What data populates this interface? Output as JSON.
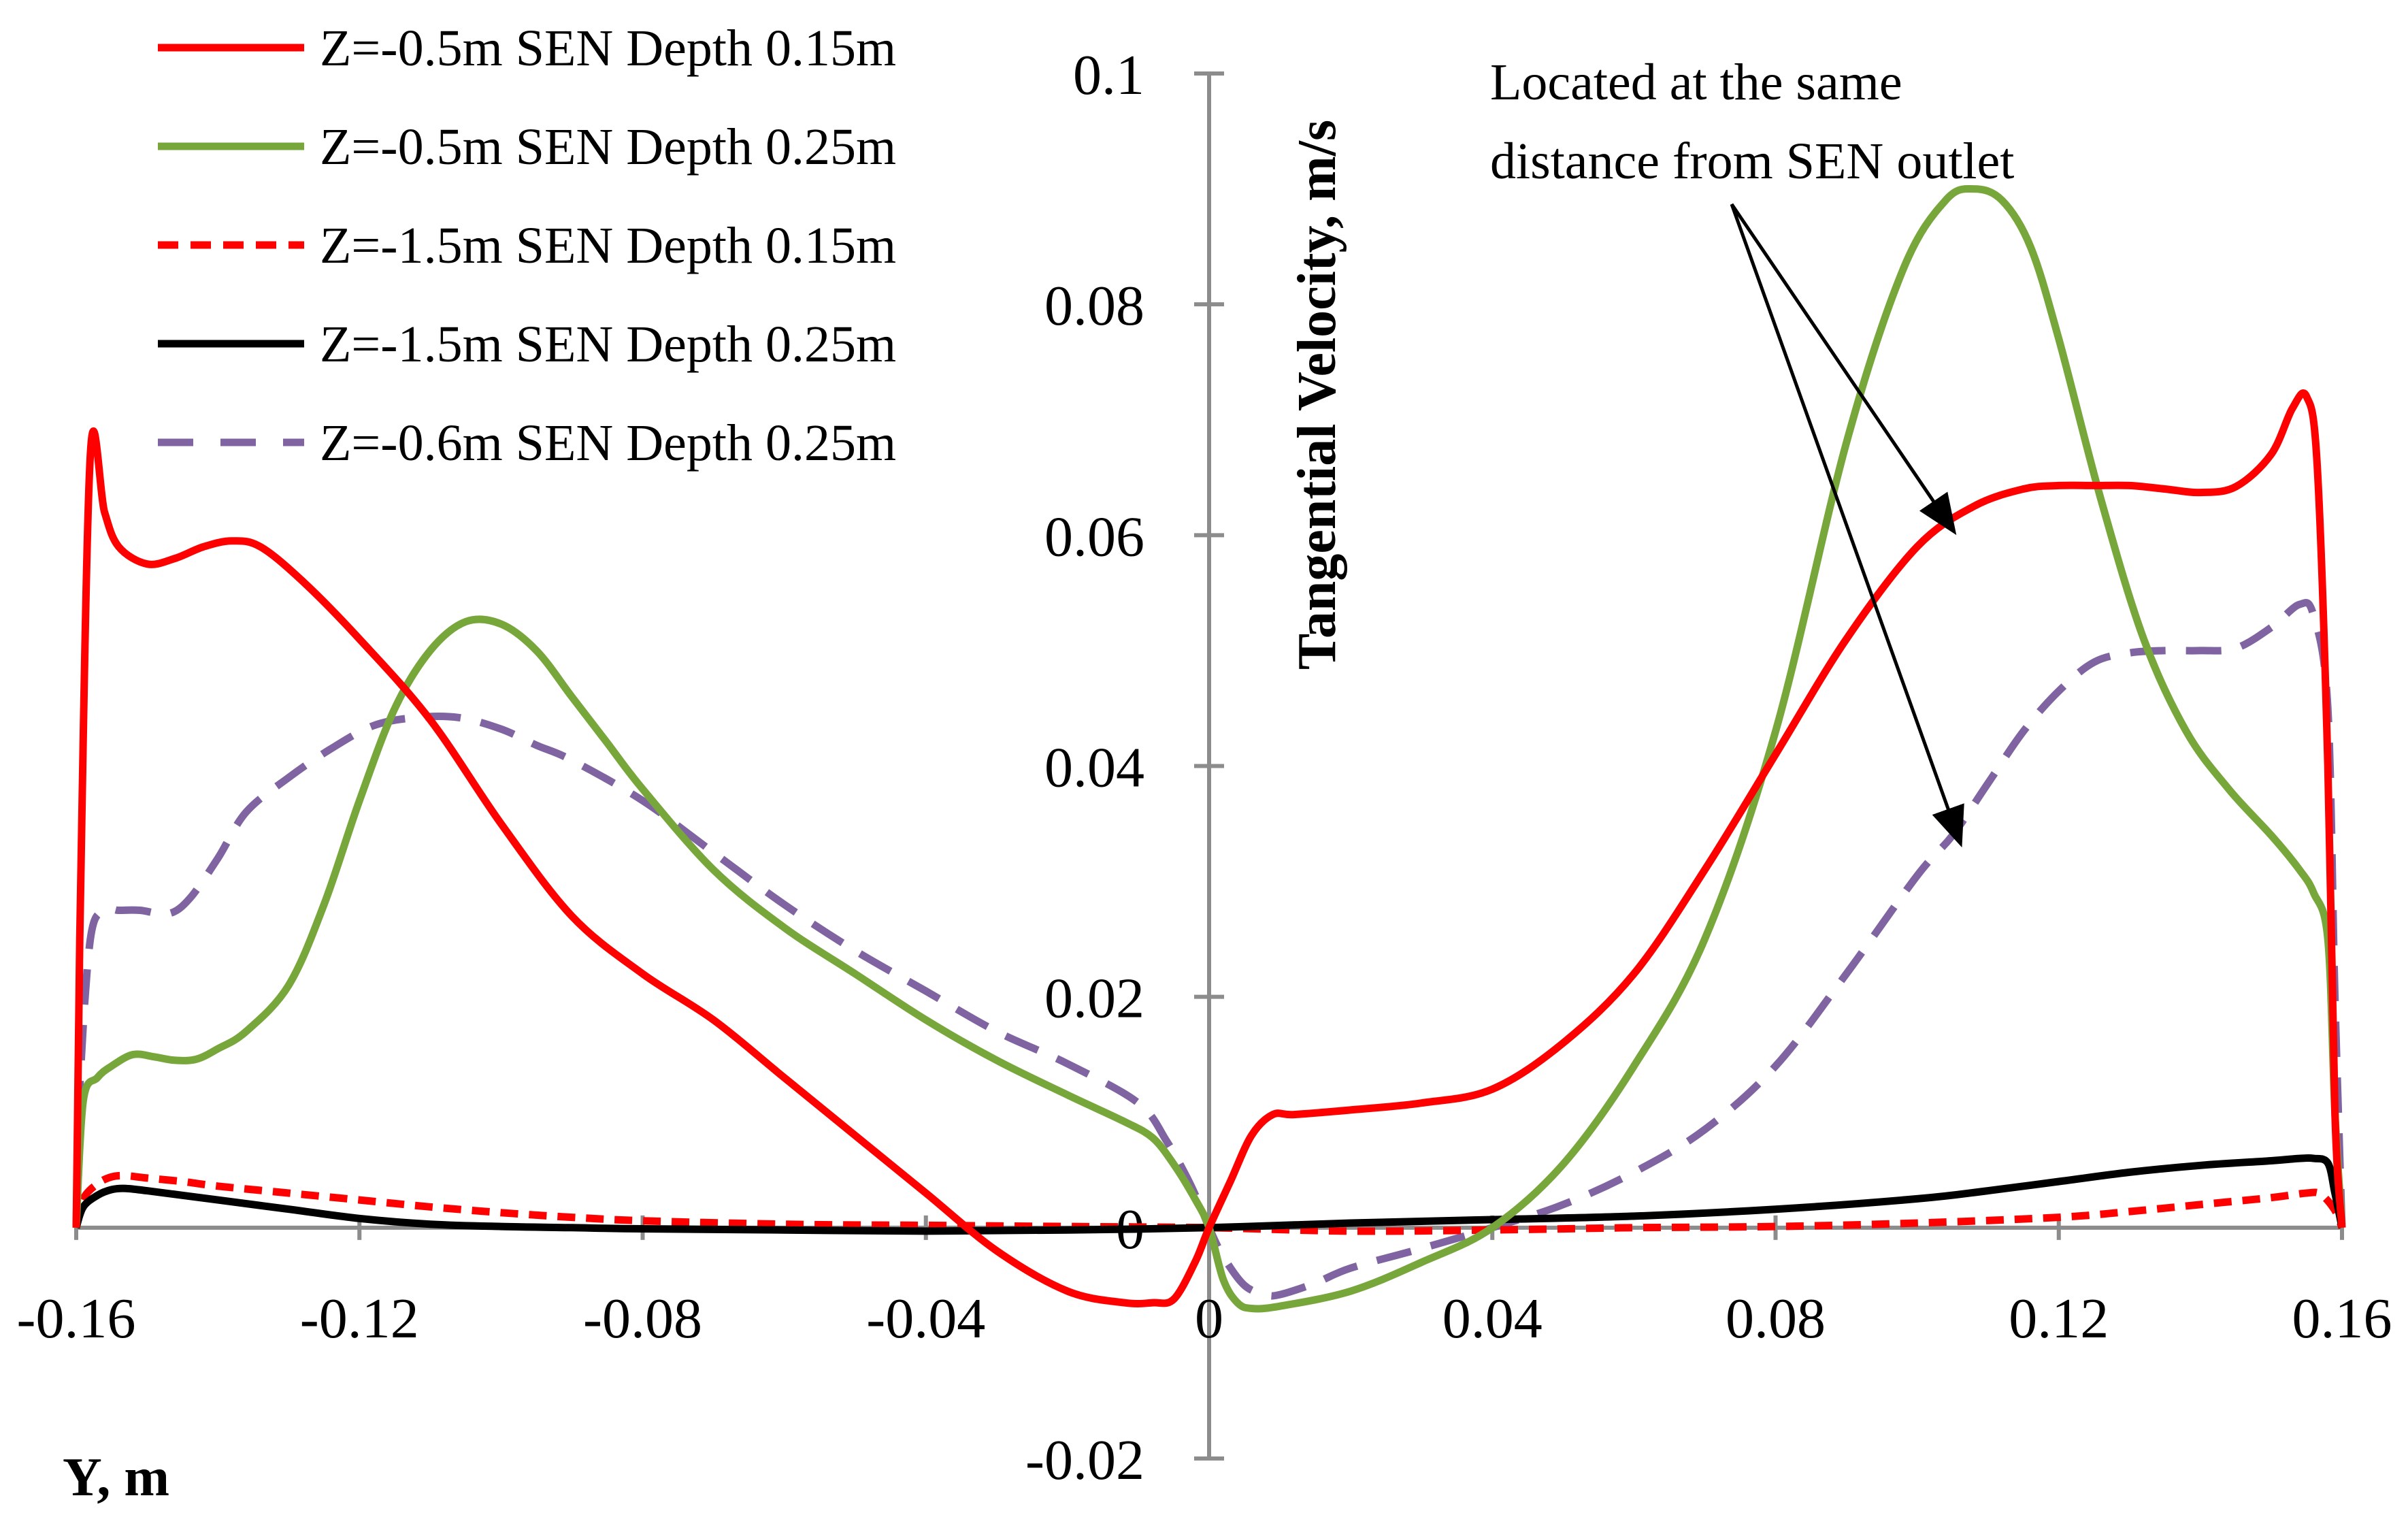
{
  "chart_data": {
    "type": "line",
    "title": "",
    "xlabel": "Y, m",
    "ylabel": "Tangential Velocity, m/s",
    "xlim": [
      -0.16,
      0.16
    ],
    "ylim": [
      -0.02,
      0.1
    ],
    "x_ticks": [
      -0.16,
      -0.12,
      -0.08,
      -0.04,
      0,
      0.04,
      0.08,
      0.12,
      0.16
    ],
    "x_tick_labels": [
      "-0.16",
      "-0.12",
      "-0.08",
      "-0.04",
      "0",
      "0.04",
      "0.08",
      "0.12",
      "0.16"
    ],
    "y_ticks": [
      -0.02,
      0,
      0.02,
      0.04,
      0.06,
      0.08,
      0.1
    ],
    "y_tick_labels": [
      "-0.02",
      "0",
      "0.02",
      "0.04",
      "0.06",
      "0.08",
      "0.1"
    ],
    "grid": false,
    "legend_position": "top-left",
    "series": [
      {
        "name": "Z=-0.5m SEN Depth 0.15m",
        "color": "#ff0000",
        "dash": "solid",
        "x": [
          -0.16,
          -0.1595,
          -0.158,
          -0.156,
          -0.154,
          -0.15,
          -0.146,
          -0.142,
          -0.138,
          -0.134,
          -0.128,
          -0.12,
          -0.11,
          -0.1,
          -0.09,
          -0.08,
          -0.07,
          -0.06,
          -0.05,
          -0.04,
          -0.03,
          -0.02,
          -0.012,
          -0.008,
          -0.005,
          -0.002,
          0,
          0.003,
          0.006,
          0.009,
          0.012,
          0.02,
          0.03,
          0.04,
          0.05,
          0.06,
          0.07,
          0.08,
          0.09,
          0.1,
          0.108,
          0.115,
          0.12,
          0.125,
          0.13,
          0.135,
          0.14,
          0.145,
          0.15,
          0.153,
          0.155,
          0.1565,
          0.158,
          0.159,
          0.16
        ],
        "y": [
          0.0,
          0.025,
          0.067,
          0.062,
          0.059,
          0.0575,
          0.058,
          0.059,
          0.0595,
          0.059,
          0.056,
          0.051,
          0.044,
          0.035,
          0.027,
          0.022,
          0.018,
          0.013,
          0.008,
          0.003,
          -0.002,
          -0.0055,
          -0.0065,
          -0.0065,
          -0.0062,
          -0.003,
          0.0,
          0.004,
          0.008,
          0.0098,
          0.0098,
          0.0102,
          0.0108,
          0.012,
          0.016,
          0.022,
          0.031,
          0.041,
          0.051,
          0.059,
          0.0625,
          0.064,
          0.0643,
          0.0643,
          0.0643,
          0.064,
          0.0637,
          0.0642,
          0.067,
          0.071,
          0.072,
          0.066,
          0.04,
          0.01,
          0.0
        ]
      },
      {
        "name": "Z=-0.5m SEN Depth 0.25m",
        "color": "#77a73b",
        "dash": "solid",
        "x": [
          -0.16,
          -0.159,
          -0.157,
          -0.155,
          -0.152,
          -0.149,
          -0.146,
          -0.143,
          -0.14,
          -0.136,
          -0.13,
          -0.125,
          -0.12,
          -0.115,
          -0.11,
          -0.105,
          -0.1,
          -0.095,
          -0.09,
          -0.085,
          -0.08,
          -0.07,
          -0.06,
          -0.05,
          -0.04,
          -0.03,
          -0.02,
          -0.012,
          -0.008,
          -0.005,
          -0.002,
          0,
          0.002,
          0.004,
          0.006,
          0.01,
          0.02,
          0.03,
          0.04,
          0.05,
          0.06,
          0.07,
          0.08,
          0.09,
          0.098,
          0.104,
          0.108,
          0.112,
          0.116,
          0.12,
          0.126,
          0.132,
          0.138,
          0.144,
          0.15,
          0.154,
          0.156,
          0.158,
          0.159,
          0.16
        ],
        "y": [
          0.0,
          0.011,
          0.013,
          0.014,
          0.015,
          0.0148,
          0.0145,
          0.0146,
          0.0155,
          0.017,
          0.021,
          0.028,
          0.037,
          0.045,
          0.05,
          0.0525,
          0.0523,
          0.05,
          0.046,
          0.042,
          0.038,
          0.031,
          0.026,
          0.022,
          0.018,
          0.0145,
          0.0115,
          0.0092,
          0.0078,
          0.0055,
          0.0025,
          0.0,
          -0.0045,
          -0.0065,
          -0.007,
          -0.0068,
          -0.0055,
          -0.003,
          0.0,
          0.0055,
          0.014,
          0.025,
          0.043,
          0.068,
          0.083,
          0.089,
          0.09,
          0.089,
          0.085,
          0.077,
          0.063,
          0.051,
          0.043,
          0.038,
          0.034,
          0.031,
          0.029,
          0.025,
          0.01,
          0.0
        ]
      },
      {
        "name": "Z=-1.5m SEN Depth 0.15m",
        "color": "#ff0000",
        "dash": "short-dash",
        "x": [
          -0.16,
          -0.159,
          -0.157,
          -0.155,
          -0.153,
          -0.15,
          -0.145,
          -0.14,
          -0.13,
          -0.12,
          -0.11,
          -0.1,
          -0.09,
          -0.08,
          -0.06,
          -0.04,
          -0.02,
          0,
          0.02,
          0.04,
          0.06,
          0.08,
          0.1,
          0.12,
          0.13,
          0.14,
          0.15,
          0.155,
          0.157,
          0.159,
          0.16
        ],
        "y": [
          0.0,
          0.0025,
          0.0038,
          0.0044,
          0.0045,
          0.0043,
          0.004,
          0.0036,
          0.003,
          0.0024,
          0.0018,
          0.0013,
          0.0009,
          0.0006,
          0.0003,
          0.0002,
          0.0001,
          0.0,
          -0.0003,
          -0.0002,
          0.0,
          0.0001,
          0.0004,
          0.0009,
          0.0014,
          0.002,
          0.0026,
          0.003,
          0.0029,
          0.0015,
          0.0
        ]
      },
      {
        "name": "Z=-1.5m SEN Depth 0.25m",
        "color": "#000000",
        "dash": "solid",
        "x": [
          -0.16,
          -0.159,
          -0.157,
          -0.155,
          -0.153,
          -0.15,
          -0.145,
          -0.14,
          -0.13,
          -0.12,
          -0.11,
          -0.1,
          -0.09,
          -0.08,
          -0.06,
          -0.04,
          -0.02,
          0,
          0.02,
          0.04,
          0.06,
          0.08,
          0.1,
          0.11,
          0.12,
          0.13,
          0.14,
          0.15,
          0.154,
          0.156,
          0.158,
          0.159,
          0.16
        ],
        "y": [
          0.0,
          0.0018,
          0.0028,
          0.0033,
          0.0034,
          0.0032,
          0.0028,
          0.0024,
          0.0016,
          0.0008,
          0.0003,
          0.0001,
          0.0,
          -0.0001,
          -0.0002,
          -0.0003,
          -0.0002,
          0.0,
          0.0004,
          0.0007,
          0.001,
          0.0016,
          0.0025,
          0.0032,
          0.004,
          0.0048,
          0.0054,
          0.0058,
          0.006,
          0.006,
          0.0056,
          0.003,
          0.0
        ]
      },
      {
        "name": "Z=-0.6m SEN Depth 0.25m",
        "color": "#8064a2",
        "dash": "long-dash",
        "x": [
          -0.16,
          -0.1595,
          -0.158,
          -0.156,
          -0.154,
          -0.151,
          -0.147,
          -0.144,
          -0.14,
          -0.136,
          -0.13,
          -0.124,
          -0.118,
          -0.112,
          -0.106,
          -0.1,
          -0.095,
          -0.09,
          -0.08,
          -0.07,
          -0.06,
          -0.05,
          -0.04,
          -0.03,
          -0.02,
          -0.01,
          -0.006,
          -0.003,
          -0.001,
          0,
          0.002,
          0.005,
          0.008,
          0.01,
          0.015,
          0.02,
          0.03,
          0.04,
          0.05,
          0.06,
          0.07,
          0.08,
          0.09,
          0.1,
          0.105,
          0.11,
          0.115,
          0.12,
          0.125,
          0.13,
          0.135,
          0.14,
          0.145,
          0.15,
          0.154,
          0.156,
          0.158,
          0.159,
          0.16
        ],
        "y": [
          0.0,
          0.012,
          0.025,
          0.0275,
          0.0275,
          0.0275,
          0.0272,
          0.0285,
          0.032,
          0.036,
          0.039,
          0.0415,
          0.0435,
          0.0442,
          0.0442,
          0.0432,
          0.0418,
          0.0405,
          0.037,
          0.0325,
          0.028,
          0.024,
          0.0205,
          0.017,
          0.0142,
          0.0108,
          0.0075,
          0.0042,
          0.0015,
          0.0,
          -0.0025,
          -0.005,
          -0.0058,
          -0.0058,
          -0.0048,
          -0.0035,
          -0.0018,
          0.0,
          0.002,
          0.0048,
          0.0085,
          0.014,
          0.022,
          0.0305,
          0.034,
          0.0385,
          0.043,
          0.0465,
          0.049,
          0.0498,
          0.05,
          0.05,
          0.0502,
          0.052,
          0.054,
          0.053,
          0.045,
          0.02,
          0.0
        ]
      }
    ],
    "annotation": {
      "lines": [
        "Located at the same",
        "distance from SEN outlet"
      ],
      "arrow_targets": [
        {
          "x": 0.105,
          "y": 0.0605
        },
        {
          "x": 0.106,
          "y": 0.0335
        }
      ]
    }
  }
}
